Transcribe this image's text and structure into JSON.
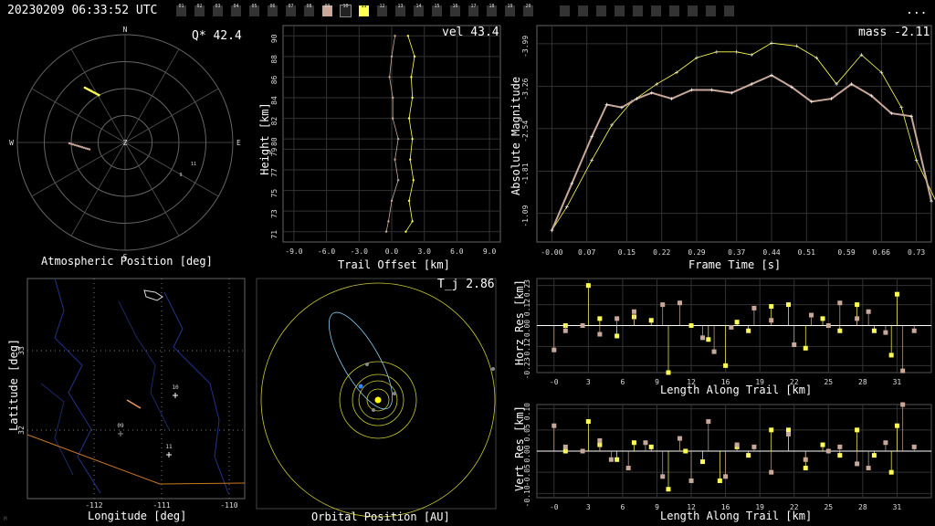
{
  "header": {
    "timestamp": "20230209 06:33:52 UTC",
    "menu": "...",
    "cameras": [
      {
        "id": "01",
        "state": "off"
      },
      {
        "id": "02",
        "state": "off"
      },
      {
        "id": "03",
        "state": "off"
      },
      {
        "id": "04",
        "state": "off"
      },
      {
        "id": "05",
        "state": "off"
      },
      {
        "id": "06",
        "state": "off"
      },
      {
        "id": "07",
        "state": "off"
      },
      {
        "id": "08",
        "state": "off"
      },
      {
        "id": "09",
        "state": "tan"
      },
      {
        "id": "10",
        "state": "sel"
      },
      {
        "id": "11",
        "state": "yel"
      },
      {
        "id": "12",
        "state": "off"
      },
      {
        "id": "13",
        "state": "off"
      },
      {
        "id": "14",
        "state": "off"
      },
      {
        "id": "15",
        "state": "off"
      },
      {
        "id": "16",
        "state": "off"
      },
      {
        "id": "17",
        "state": "off"
      },
      {
        "id": "18",
        "state": "off"
      },
      {
        "id": "19",
        "state": "off"
      },
      {
        "id": "20",
        "state": "off"
      }
    ]
  },
  "colors": {
    "tan": "#c8a898",
    "yellow": "#ffff55",
    "grid": "#555",
    "white": "#ffffff",
    "orbit": "#cccc33",
    "blue": "#3388ff"
  },
  "panels": {
    "atmos": {
      "title": "Atmospheric Position [deg]",
      "value": "Q* 42.4",
      "dirs": {
        "n": "N",
        "s": "S",
        "e": "E",
        "w": "W",
        "z": "Z"
      },
      "cams": [
        "9",
        "10",
        "11"
      ]
    },
    "height": {
      "title": "Trail Offset [km]",
      "ylabel": "Height [km]",
      "value": "vel 43.4",
      "yticks": [
        "71",
        "73",
        "75",
        "77",
        "79",
        "80",
        "82",
        "84",
        "86",
        "88",
        "90"
      ],
      "xticks": [
        "-9.0",
        "-6.0",
        "-3.0",
        "0.0",
        "3.0",
        "6.0",
        "9.0"
      ]
    },
    "mag": {
      "title": "Frame Time [s]",
      "ylabel": "Absolute Magnitude",
      "value": "mass -2.11",
      "yticks": [
        "-1.09",
        "-1.81",
        "-2.54",
        "-3.26",
        "-3.99"
      ],
      "xticks": [
        "-0.00",
        "0.07",
        "0.15",
        "0.22",
        "0.29",
        "0.37",
        "0.44",
        "0.51",
        "0.59",
        "0.66",
        "0.73"
      ]
    },
    "map": {
      "title": "Longitude [deg]",
      "ylabel": "Latitude [deg]",
      "xticks": [
        "-112",
        "-111",
        "-110"
      ],
      "yticks": [
        "33",
        "32"
      ],
      "stations": [
        "10",
        "09",
        "11"
      ],
      "logo": "M"
    },
    "orbit": {
      "title": "Orbital Position [AU]",
      "value": "T_j 2.86"
    },
    "hres": {
      "title": "Length Along Trail [km]",
      "ylabel": "Horz Res [km]",
      "yticks": [
        "0.23",
        "0.12",
        "0.00",
        "-0.12",
        "-0.23"
      ],
      "xticks": [
        "-0",
        "3",
        "6",
        "9",
        "12",
        "16",
        "19",
        "22",
        "25",
        "28",
        "31"
      ]
    },
    "vres": {
      "title": "Length Along Trail [km]",
      "ylabel": "Vert Res [km]",
      "yticks": [
        "0.10",
        "0.05",
        "0.00",
        "-0.05",
        "-0.10"
      ],
      "xticks": [
        "-0",
        "3",
        "6",
        "9",
        "12",
        "16",
        "19",
        "22",
        "25",
        "28",
        "31"
      ]
    }
  },
  "chart_data": [
    {
      "type": "line",
      "name": "height_profile",
      "xlabel": "Trail Offset [km]",
      "ylabel": "Height [km]",
      "xlim": [
        -10,
        10
      ],
      "ylim": [
        70,
        91
      ],
      "series": [
        {
          "name": "tan",
          "points": [
            [
              0.3,
              90
            ],
            [
              0.0,
              88
            ],
            [
              -0.2,
              86
            ],
            [
              0.1,
              84
            ],
            [
              0.1,
              82
            ],
            [
              0.6,
              80
            ],
            [
              0.3,
              78
            ],
            [
              0.6,
              76
            ],
            [
              0.0,
              74
            ],
            [
              -0.3,
              72
            ],
            [
              -0.5,
              71
            ]
          ]
        },
        {
          "name": "yellow",
          "points": [
            [
              1.5,
              90
            ],
            [
              2.1,
              88
            ],
            [
              1.8,
              86
            ],
            [
              1.9,
              84
            ],
            [
              1.6,
              82
            ],
            [
              1.9,
              80
            ],
            [
              1.7,
              78
            ],
            [
              2.0,
              76
            ],
            [
              1.6,
              74
            ],
            [
              1.9,
              72
            ],
            [
              1.3,
              71
            ]
          ]
        }
      ]
    },
    {
      "type": "line",
      "name": "magnitude",
      "xlabel": "Frame Time [s]",
      "ylabel": "Absolute Magnitude",
      "xlim": [
        -0.03,
        0.76
      ],
      "ylim": [
        -0.6,
        -4.3
      ],
      "series": [
        {
          "name": "yellow",
          "points": [
            [
              0.0,
              -0.8
            ],
            [
              0.03,
              -1.2
            ],
            [
              0.08,
              -2.0
            ],
            [
              0.12,
              -2.6
            ],
            [
              0.16,
              -3.0
            ],
            [
              0.21,
              -3.3
            ],
            [
              0.25,
              -3.5
            ],
            [
              0.29,
              -3.75
            ],
            [
              0.33,
              -3.85
            ],
            [
              0.37,
              -3.85
            ],
            [
              0.4,
              -3.8
            ],
            [
              0.44,
              -4.0
            ],
            [
              0.49,
              -3.95
            ],
            [
              0.53,
              -3.75
            ],
            [
              0.57,
              -3.3
            ],
            [
              0.62,
              -3.8
            ],
            [
              0.66,
              -3.5
            ],
            [
              0.7,
              -2.9
            ],
            [
              0.73,
              -2.0
            ],
            [
              0.78,
              -1.1
            ]
          ]
        },
        {
          "name": "tan",
          "points": [
            [
              0.0,
              -0.8
            ],
            [
              0.04,
              -1.6
            ],
            [
              0.08,
              -2.4
            ],
            [
              0.11,
              -2.95
            ],
            [
              0.14,
              -2.9
            ],
            [
              0.17,
              -3.05
            ],
            [
              0.2,
              -3.15
            ],
            [
              0.24,
              -3.05
            ],
            [
              0.28,
              -3.2
            ],
            [
              0.32,
              -3.2
            ],
            [
              0.36,
              -3.15
            ],
            [
              0.4,
              -3.3
            ],
            [
              0.44,
              -3.45
            ],
            [
              0.48,
              -3.25
            ],
            [
              0.52,
              -3.0
            ],
            [
              0.56,
              -3.05
            ],
            [
              0.6,
              -3.3
            ],
            [
              0.64,
              -3.1
            ],
            [
              0.68,
              -2.8
            ],
            [
              0.72,
              -2.75
            ],
            [
              0.76,
              -1.3
            ]
          ]
        }
      ]
    },
    {
      "type": "scatter",
      "name": "horz_residuals",
      "xlabel": "Length Along Trail [km]",
      "ylabel": "Horz Res [km]",
      "xlim": [
        -1.5,
        33
      ],
      "ylim": [
        -0.27,
        0.27
      ],
      "series": [
        {
          "name": "yellow",
          "points": [
            [
              1,
              0
            ],
            [
              3,
              0.23
            ],
            [
              4,
              0.04
            ],
            [
              5.5,
              -0.06
            ],
            [
              7,
              0.05
            ],
            [
              8.5,
              0.03
            ],
            [
              10,
              -0.27
            ],
            [
              12,
              0
            ],
            [
              13.5,
              -0.08
            ],
            [
              15,
              -0.23
            ],
            [
              16,
              0.02
            ],
            [
              17,
              -0.03
            ],
            [
              19,
              0.11
            ],
            [
              20.5,
              0.12
            ],
            [
              22,
              -0.13
            ],
            [
              23.5,
              0.04
            ],
            [
              25,
              -0.03
            ],
            [
              26.5,
              0.12
            ],
            [
              28,
              -0.03
            ],
            [
              29.5,
              -0.17
            ],
            [
              30,
              0.18
            ]
          ]
        },
        {
          "name": "tan",
          "points": [
            [
              0,
              -0.14
            ],
            [
              1,
              -0.03
            ],
            [
              2.5,
              0
            ],
            [
              4,
              -0.05
            ],
            [
              5.5,
              0.04
            ],
            [
              7,
              0.08
            ],
            [
              9.5,
              0.12
            ],
            [
              11,
              0.13
            ],
            [
              13,
              -0.07
            ],
            [
              14,
              -0.15
            ],
            [
              15.5,
              -0.01
            ],
            [
              17.5,
              0.1
            ],
            [
              19,
              0.03
            ],
            [
              21,
              -0.11
            ],
            [
              22.5,
              0.06
            ],
            [
              24,
              0
            ],
            [
              25,
              0.13
            ],
            [
              26.5,
              0.04
            ],
            [
              27.5,
              0.08
            ],
            [
              29,
              -0.04
            ],
            [
              30.5,
              -0.26
            ],
            [
              31.5,
              -0.03
            ]
          ]
        }
      ]
    },
    {
      "type": "scatter",
      "name": "vert_residuals",
      "xlabel": "Length Along Trail [km]",
      "ylabel": "Vert Res [km]",
      "xlim": [
        -1.5,
        33
      ],
      "ylim": [
        -0.11,
        0.11
      ],
      "series": [
        {
          "name": "yellow",
          "points": [
            [
              1,
              0
            ],
            [
              3,
              0.07
            ],
            [
              4,
              0.015
            ],
            [
              5.5,
              -0.02
            ],
            [
              7,
              0.02
            ],
            [
              8.5,
              0.01
            ],
            [
              10,
              -0.09
            ],
            [
              11.5,
              0
            ],
            [
              13,
              -0.025
            ],
            [
              14.5,
              -0.07
            ],
            [
              16,
              0.01
            ],
            [
              17,
              -0.01
            ],
            [
              19,
              0.05
            ],
            [
              20.5,
              0.05
            ],
            [
              22,
              -0.04
            ],
            [
              23.5,
              0.015
            ],
            [
              25,
              -0.01
            ],
            [
              26.5,
              0.05
            ],
            [
              28,
              -0.01
            ],
            [
              29.5,
              -0.05
            ],
            [
              30,
              0.06
            ]
          ]
        },
        {
          "name": "tan",
          "points": [
            [
              0,
              0.06
            ],
            [
              1,
              0.01
            ],
            [
              2.5,
              0
            ],
            [
              4,
              0.025
            ],
            [
              5,
              -0.02
            ],
            [
              6.5,
              -0.04
            ],
            [
              8,
              0.02
            ],
            [
              9.5,
              -0.06
            ],
            [
              11,
              0.03
            ],
            [
              12,
              -0.07
            ],
            [
              13.5,
              0.07
            ],
            [
              15,
              -0.06
            ],
            [
              16,
              0.015
            ],
            [
              17.5,
              0.01
            ],
            [
              19,
              -0.05
            ],
            [
              20.5,
              0.04
            ],
            [
              22,
              -0.02
            ],
            [
              24,
              0
            ],
            [
              25,
              0.01
            ],
            [
              26.5,
              -0.03
            ],
            [
              27.5,
              -0.04
            ],
            [
              29,
              0.02
            ],
            [
              30.5,
              0.11
            ],
            [
              31.5,
              0.01
            ]
          ]
        }
      ]
    }
  ]
}
